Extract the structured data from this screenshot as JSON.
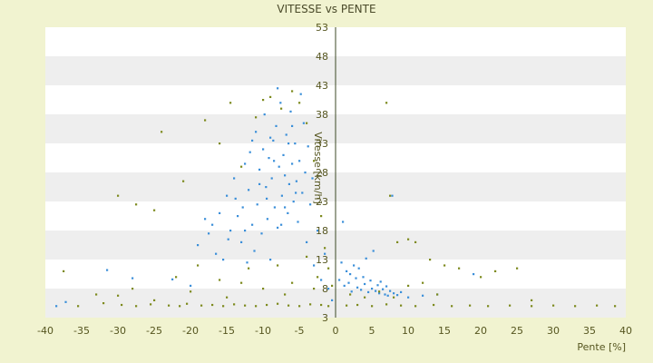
{
  "chart_data": {
    "type": "scatter",
    "title": "VITESSE vs PENTE",
    "xlabel": "Pente [%]",
    "ylabel": "Vitesse [km/h]",
    "xlim": [
      -40,
      40
    ],
    "ylim": [
      3,
      53
    ],
    "x_ticks": [
      -40,
      -35,
      -30,
      -25,
      -20,
      -15,
      -10,
      -5,
      0,
      5,
      10,
      15,
      20,
      25,
      30,
      35,
      40
    ],
    "y_ticks": [
      3,
      8,
      13,
      18,
      23,
      28,
      33,
      38,
      43,
      48,
      53
    ],
    "grid": "horizontal alternating bands",
    "legend": "none",
    "colors": {
      "background": "#f1f3d0",
      "plot_band_light": "#ffffff",
      "plot_band_dark": "#eeeeee",
      "series_1": "#3b8fd9",
      "series_2": "#7d8a1e",
      "text": "#55551f",
      "zero_axis": "#3c4a24"
    },
    "series": [
      {
        "color": "#3b8fd9",
        "points": [
          [
            -38.5,
            5.0
          ],
          [
            -37.2,
            5.7
          ],
          [
            -31.5,
            11.2
          ],
          [
            -28.0,
            9.8
          ],
          [
            -22.5,
            9.6
          ],
          [
            -20.0,
            8.5
          ],
          [
            -19.0,
            15.5
          ],
          [
            -18.0,
            20.0
          ],
          [
            -17.5,
            17.5
          ],
          [
            -17.0,
            19.0
          ],
          [
            -16.5,
            14.0
          ],
          [
            -16.0,
            21.0
          ],
          [
            -15.5,
            13.0
          ],
          [
            -15.0,
            24.0
          ],
          [
            -14.5,
            18.0
          ],
          [
            -14.0,
            27.0
          ],
          [
            -13.5,
            20.5
          ],
          [
            -13.0,
            16.0
          ],
          [
            -12.8,
            22.0
          ],
          [
            -12.5,
            29.5
          ],
          [
            -12.2,
            12.5
          ],
          [
            -12.0,
            25.0
          ],
          [
            -11.8,
            31.5
          ],
          [
            -11.5,
            19.0
          ],
          [
            -11.2,
            14.5
          ],
          [
            -11.0,
            35.0
          ],
          [
            -10.8,
            22.5
          ],
          [
            -10.5,
            28.5
          ],
          [
            -10.2,
            17.5
          ],
          [
            -10.0,
            32.0
          ],
          [
            -9.8,
            38.0
          ],
          [
            -9.6,
            25.5
          ],
          [
            -9.4,
            20.0
          ],
          [
            -9.2,
            30.5
          ],
          [
            -9.0,
            13.0
          ],
          [
            -8.8,
            27.0
          ],
          [
            -8.6,
            33.5
          ],
          [
            -8.4,
            22.0
          ],
          [
            -8.2,
            36.0
          ],
          [
            -8.0,
            18.5
          ],
          [
            -7.8,
            29.0
          ],
          [
            -7.6,
            40.0
          ],
          [
            -7.4,
            24.0
          ],
          [
            -7.2,
            31.0
          ],
          [
            -7.0,
            27.5
          ],
          [
            -6.8,
            34.5
          ],
          [
            -6.6,
            21.0
          ],
          [
            -6.4,
            26.0
          ],
          [
            -6.2,
            38.5
          ],
          [
            -6.0,
            29.5
          ],
          [
            -5.8,
            23.0
          ],
          [
            -5.6,
            33.0
          ],
          [
            -5.4,
            26.5
          ],
          [
            -5.2,
            19.5
          ],
          [
            -5.0,
            30.0
          ],
          [
            -4.8,
            41.5
          ],
          [
            -4.6,
            24.5
          ],
          [
            -4.4,
            36.5
          ],
          [
            -4.2,
            28.0
          ],
          [
            -4.0,
            16.0
          ],
          [
            -3.8,
            32.5
          ],
          [
            -3.5,
            22.5
          ],
          [
            -3.2,
            27.0
          ],
          [
            -3.0,
            12.0
          ],
          [
            -2.5,
            18.0
          ],
          [
            -2.0,
            9.5
          ],
          [
            -1.5,
            14.0
          ],
          [
            -1.0,
            8.0
          ],
          [
            -0.5,
            6.0
          ],
          [
            0.5,
            9.5
          ],
          [
            0.8,
            12.5
          ],
          [
            1.0,
            19.5
          ],
          [
            1.2,
            8.5
          ],
          [
            1.5,
            11.0
          ],
          [
            1.8,
            9.0
          ],
          [
            2.0,
            10.5
          ],
          [
            2.2,
            7.5
          ],
          [
            2.5,
            12.0
          ],
          [
            2.8,
            9.8
          ],
          [
            3.0,
            8.2
          ],
          [
            3.2,
            11.5
          ],
          [
            3.5,
            7.8
          ],
          [
            3.8,
            10.0
          ],
          [
            4.0,
            8.8
          ],
          [
            4.2,
            13.2
          ],
          [
            4.5,
            7.4
          ],
          [
            4.8,
            9.4
          ],
          [
            5.0,
            8.0
          ],
          [
            5.2,
            14.5
          ],
          [
            5.5,
            7.6
          ],
          [
            5.8,
            8.6
          ],
          [
            6.0,
            7.2
          ],
          [
            6.2,
            9.2
          ],
          [
            6.5,
            7.9
          ],
          [
            6.8,
            7.0
          ],
          [
            7.0,
            8.4
          ],
          [
            7.2,
            6.8
          ],
          [
            7.5,
            7.6
          ],
          [
            7.8,
            24.0
          ],
          [
            8.0,
            7.2
          ],
          [
            8.5,
            6.9
          ],
          [
            9.0,
            7.4
          ],
          [
            10.0,
            6.5
          ],
          [
            12.0,
            6.8
          ],
          [
            14.0,
            7.0
          ],
          [
            19.0,
            10.5
          ],
          [
            -10.5,
            26.0
          ],
          [
            -9.5,
            23.5
          ],
          [
            -8.5,
            30.0
          ],
          [
            -7.5,
            19.0
          ],
          [
            -6.5,
            33.0
          ],
          [
            -5.5,
            24.5
          ],
          [
            -11.5,
            33.5
          ],
          [
            -12.5,
            18.0
          ],
          [
            -13.8,
            23.5
          ],
          [
            -14.8,
            16.5
          ],
          [
            -8.0,
            42.5
          ],
          [
            -6.0,
            36.0
          ],
          [
            -7.0,
            22.0
          ],
          [
            -9.0,
            34.0
          ]
        ]
      },
      {
        "color": "#7d8a1e",
        "points": [
          [
            -35.5,
            5.0
          ],
          [
            -32.0,
            5.5
          ],
          [
            -29.5,
            5.2
          ],
          [
            -27.5,
            5.0
          ],
          [
            -25.5,
            5.3
          ],
          [
            -23.0,
            5.1
          ],
          [
            -21.5,
            5.0
          ],
          [
            -20.5,
            5.4
          ],
          [
            -18.5,
            5.1
          ],
          [
            -17.0,
            5.2
          ],
          [
            -15.5,
            5.0
          ],
          [
            -14.0,
            5.3
          ],
          [
            -12.5,
            5.1
          ],
          [
            -11.0,
            5.0
          ],
          [
            -9.5,
            5.2
          ],
          [
            -8.0,
            5.4
          ],
          [
            -6.5,
            5.1
          ],
          [
            -5.0,
            5.0
          ],
          [
            -3.5,
            5.3
          ],
          [
            -2.0,
            5.2
          ],
          [
            -1.0,
            5.0
          ],
          [
            1.5,
            5.1
          ],
          [
            3.0,
            5.2
          ],
          [
            5.0,
            5.0
          ],
          [
            7.0,
            5.3
          ],
          [
            9.0,
            5.1
          ],
          [
            11.0,
            5.0
          ],
          [
            13.5,
            5.2
          ],
          [
            16.0,
            5.0
          ],
          [
            18.5,
            5.1
          ],
          [
            21.0,
            5.0
          ],
          [
            24.0,
            5.1
          ],
          [
            27.0,
            5.0
          ],
          [
            30.0,
            5.1
          ],
          [
            33.0,
            5.0
          ],
          [
            36.0,
            5.1
          ],
          [
            38.5,
            5.0
          ],
          [
            -37.5,
            11.0
          ],
          [
            -30.0,
            24.0
          ],
          [
            -27.5,
            22.5
          ],
          [
            -25.0,
            21.5
          ],
          [
            -24.0,
            35.0
          ],
          [
            -21.0,
            26.5
          ],
          [
            -18.0,
            37.0
          ],
          [
            -16.0,
            33.0
          ],
          [
            -14.5,
            40.0
          ],
          [
            -13.0,
            29.0
          ],
          [
            -11.0,
            37.5
          ],
          [
            -10.0,
            40.5
          ],
          [
            -9.0,
            41.0
          ],
          [
            -7.5,
            39.0
          ],
          [
            -6.0,
            42.0
          ],
          [
            -5.0,
            40.0
          ],
          [
            -4.0,
            36.5
          ],
          [
            -3.0,
            30.0
          ],
          [
            -2.0,
            20.5
          ],
          [
            -1.5,
            15.0
          ],
          [
            -1.0,
            11.5
          ],
          [
            -0.5,
            8.5
          ],
          [
            7.0,
            40.0
          ],
          [
            7.5,
            24.0
          ],
          [
            8.5,
            16.0
          ],
          [
            10.0,
            16.5
          ],
          [
            11.0,
            16.0
          ],
          [
            13.0,
            13.0
          ],
          [
            15.0,
            12.0
          ],
          [
            17.0,
            11.5
          ],
          [
            20.0,
            10.0
          ],
          [
            22.0,
            11.0
          ],
          [
            25.0,
            11.5
          ],
          [
            27.0,
            6.0
          ],
          [
            -33.0,
            7.0
          ],
          [
            -28.0,
            8.0
          ],
          [
            -22.0,
            10.0
          ],
          [
            -19.0,
            12.0
          ],
          [
            -16.0,
            9.5
          ],
          [
            -12.0,
            11.5
          ],
          [
            -10.0,
            8.0
          ],
          [
            -8.0,
            12.0
          ],
          [
            -6.0,
            9.0
          ],
          [
            -4.0,
            13.5
          ],
          [
            -2.5,
            10.0
          ],
          [
            2.0,
            7.0
          ],
          [
            4.0,
            6.5
          ],
          [
            6.0,
            7.5
          ],
          [
            8.0,
            6.5
          ],
          [
            10.0,
            8.5
          ],
          [
            12.0,
            9.0
          ],
          [
            14.0,
            7.0
          ],
          [
            -15.0,
            6.5
          ],
          [
            -20.0,
            7.5
          ],
          [
            -25.0,
            6.0
          ],
          [
            -30.0,
            6.8
          ],
          [
            -13.0,
            9.0
          ],
          [
            -7.0,
            7.0
          ],
          [
            -3.0,
            8.0
          ]
        ]
      }
    ]
  }
}
